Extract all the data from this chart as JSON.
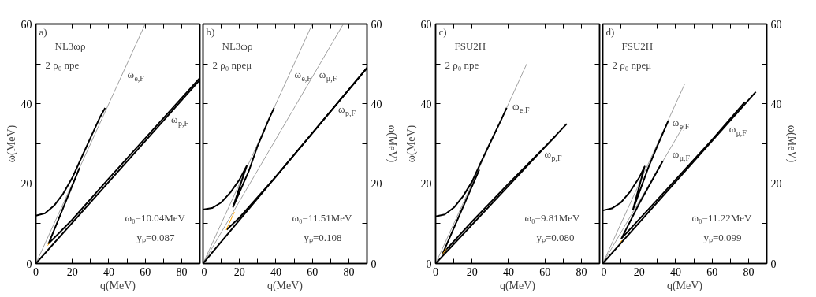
{
  "chart_data": [
    {
      "type": "line",
      "xlabel": "q(MeV)",
      "ylabel": "ω(MeV)",
      "xlim": [
        0,
        90
      ],
      "ylim": [
        0,
        60
      ],
      "xticks": [
        0,
        {
          "value": 10,
          "label": null
        },
        20,
        {
          "value": 30,
          "label": null
        },
        40,
        {
          "value": 50,
          "label": null
        },
        60,
        {
          "value": 70,
          "label": null
        },
        80
      ],
      "yticks": [
        0,
        {
          "value": 10,
          "label": null
        },
        20,
        {
          "value": 30,
          "label": null
        },
        40,
        {
          "value": 50,
          "label": null
        },
        60
      ],
      "grid": false,
      "annotations": [
        "a)",
        "NL3ωρ",
        "2 ρ₀   npe",
        "ω₀=10.04MeV",
        "yₚ=0.087"
      ],
      "series": [
        {
          "name": "ω$_{e,F}$",
          "color": "#a0a0a0",
          "x": [
            0,
            60
          ],
          "values": [
            0,
            60
          ]
        },
        {
          "name": "ω$_{p,F}$",
          "color": "#000000",
          "x": [
            0,
            90
          ],
          "values": [
            0,
            46
          ]
        },
        {
          "color": "#000000",
          "x": [
            0,
            5,
            10,
            15,
            20,
            25,
            30,
            35,
            38
          ],
          "values": [
            12,
            12.6,
            14.5,
            17.5,
            21.5,
            26.5,
            31.5,
            36.5,
            39
          ]
        },
        {
          "color": "#000000",
          "x": [
            24,
            7,
            20,
            40,
            90
          ],
          "values": [
            24,
            5,
            11,
            21.3,
            46.5
          ]
        },
        {
          "color": "#ffa500",
          "x": [
            6.5,
            7.5
          ],
          "values": [
            4.5,
            5.2
          ]
        }
      ]
    },
    {
      "type": "line",
      "xlabel": "q(MeV)",
      "y2label": "ω(MeV)",
      "xlim": [
        0,
        90
      ],
      "y2lim": [
        0,
        60
      ],
      "xticks": [
        0,
        {
          "value": 10,
          "label": null
        },
        20,
        {
          "value": 30,
          "label": null
        },
        40,
        {
          "value": 50,
          "label": null
        },
        60,
        {
          "value": 70,
          "label": null
        },
        80
      ],
      "y2ticks": [
        0,
        {
          "value": 10,
          "label": null
        },
        20,
        {
          "value": 30,
          "label": null
        },
        40,
        {
          "value": 50,
          "label": null
        },
        60
      ],
      "grid": false,
      "annotations": [
        "b)",
        "NL3ωρ",
        "2 ρ₀   npeμ",
        "ω₀=11.51MeV",
        "yₚ=0.108"
      ],
      "series": [
        {
          "name": "ω$_{e,F}$",
          "color": "#a0a0a0",
          "axis": "y2",
          "x": [
            0,
            60
          ],
          "values": [
            0,
            60
          ]
        },
        {
          "name": "ω$_{μ,F}$",
          "color": "#a0a0a0",
          "axis": "y2",
          "x": [
            0,
            77
          ],
          "values": [
            0,
            60
          ]
        },
        {
          "name": "ω$_{p,F}$",
          "color": "#000000",
          "axis": "y2",
          "x": [
            0,
            90
          ],
          "values": [
            0,
            49
          ]
        },
        {
          "color": "#000000",
          "axis": "y2",
          "x": [
            0,
            5,
            10,
            15,
            20,
            24,
            16.5,
            25,
            30,
            36,
            39
          ],
          "values": [
            13.5,
            13.9,
            15.3,
            17.8,
            21,
            24.5,
            14.2,
            23,
            29.5,
            36,
            39
          ]
        },
        {
          "color": "#000000",
          "axis": "y2",
          "x": [
            13,
            20,
            40,
            90
          ],
          "values": [
            8.5,
            11.5,
            21.8,
            49
          ]
        },
        {
          "color": "#ffa500",
          "axis": "y2",
          "x": [
            12.7,
            17.2
          ],
          "values": [
            8.4,
            12.9
          ]
        }
      ]
    },
    {
      "type": "line",
      "xlabel": "q(MeV)",
      "ylabel": "ω(MeV)",
      "xlim": [
        0,
        90
      ],
      "ylim": [
        0,
        60
      ],
      "xticks": [
        0,
        {
          "value": 10,
          "label": null
        },
        20,
        {
          "value": 30,
          "label": null
        },
        40,
        {
          "value": 50,
          "label": null
        },
        60,
        {
          "value": 70,
          "label": null
        },
        80
      ],
      "yticks": [
        0,
        {
          "value": 10,
          "label": null
        },
        20,
        {
          "value": 30,
          "label": null
        },
        40,
        {
          "value": 50,
          "label": null
        },
        60
      ],
      "grid": false,
      "annotations": [
        "c)",
        "FSU2H",
        "2 ρ₀   npe",
        "ω₀=9.81MeV",
        "yₚ=0.080"
      ],
      "series": [
        {
          "name": "ω$_{e,F}$",
          "color": "#a0a0a0",
          "x": [
            0,
            50
          ],
          "values": [
            0,
            50
          ]
        },
        {
          "name": "ω$_{p,F}$",
          "color": "#000000",
          "x": [
            0,
            72
          ],
          "values": [
            0,
            35
          ]
        },
        {
          "color": "#000000",
          "x": [
            0,
            5,
            10,
            15,
            20,
            25,
            30,
            36,
            39
          ],
          "values": [
            11.8,
            12.3,
            14,
            16.8,
            20.5,
            25.5,
            30.3,
            36,
            39
          ]
        },
        {
          "color": "#000000",
          "x": [
            24,
            4,
            20,
            40,
            66
          ],
          "values": [
            23.5,
            2.6,
            10.5,
            20,
            32
          ]
        },
        {
          "color": "#ffa500",
          "x": [
            4,
            6
          ],
          "values": [
            2.5,
            3.7
          ]
        }
      ]
    },
    {
      "type": "line",
      "xlabel": "q(MeV)",
      "y2label": "ω(MeV)",
      "xlim": [
        0,
        90
      ],
      "y2lim": [
        0,
        60
      ],
      "xticks": [
        0,
        {
          "value": 10,
          "label": null
        },
        20,
        {
          "value": 30,
          "label": null
        },
        40,
        {
          "value": 50,
          "label": null
        },
        60,
        {
          "value": 70,
          "label": null
        },
        80
      ],
      "y2ticks": [
        0,
        {
          "value": 10,
          "label": null
        },
        20,
        {
          "value": 30,
          "label": null
        },
        40,
        {
          "value": 50,
          "label": null
        },
        60
      ],
      "grid": false,
      "annotations": [
        "d)",
        "FSU2H",
        "2 ρ₀   npeμ",
        "ω₀=11.22MeV",
        "yₚ=0.099"
      ],
      "series": [
        {
          "name": "ω$_{e,F}$",
          "color": "#a0a0a0",
          "axis": "y2",
          "x": [
            0,
            45
          ],
          "values": [
            0,
            45
          ]
        },
        {
          "name": "ω$_{μ,F}$",
          "color": "#a0a0a0",
          "axis": "y2",
          "x": [
            0,
            45
          ],
          "values": [
            0,
            35
          ]
        },
        {
          "name": "ω$_{p,F}$",
          "color": "#000000",
          "axis": "y2",
          "x": [
            0,
            84
          ],
          "values": [
            0,
            43
          ]
        },
        {
          "color": "#000000",
          "axis": "y2",
          "x": [
            0,
            5,
            10,
            15,
            20,
            23,
            16.6,
            25,
            30,
            36
          ],
          "values": [
            13.3,
            13.8,
            15.3,
            18,
            21.5,
            24.3,
            13.5,
            24,
            29.5,
            35.8
          ]
        },
        {
          "color": "#000000",
          "axis": "y2",
          "x": [
            33,
            20,
            10.3,
            30,
            60,
            78
          ],
          "values": [
            25.7,
            15,
            6.3,
            16,
            31,
            40.5
          ]
        },
        {
          "color": "#ffa500",
          "axis": "y2",
          "x": [
            9.5,
            10.5
          ],
          "values": [
            5.2,
            5.8
          ]
        }
      ]
    }
  ]
}
